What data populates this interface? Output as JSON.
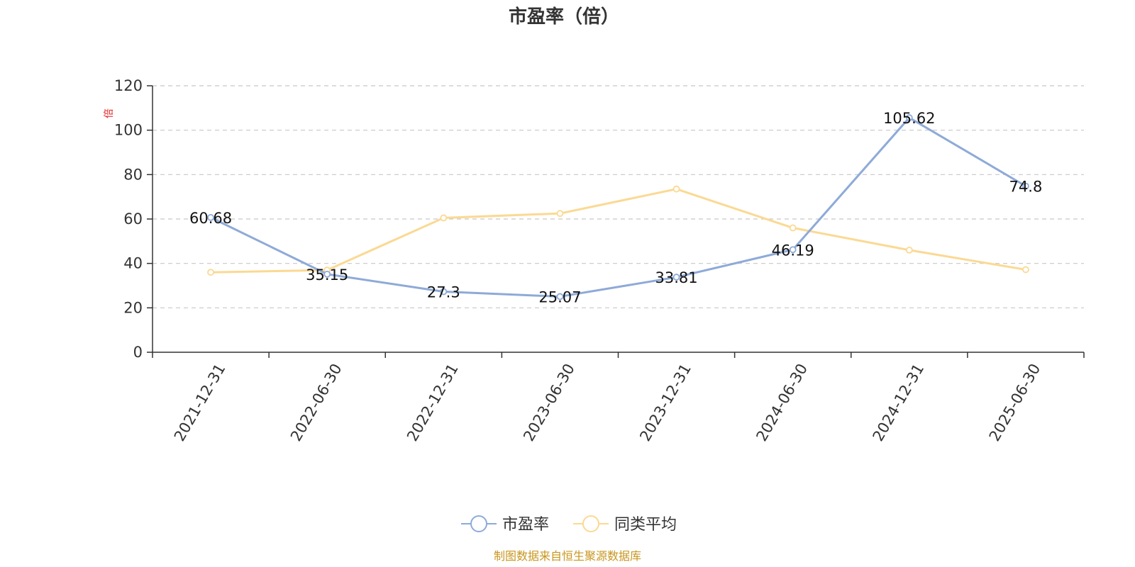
{
  "chart_data": {
    "type": "line",
    "title": "市盈率（倍）",
    "unit_label": "倍",
    "categories": [
      "2021-12-31",
      "2022-06-30",
      "2022-12-31",
      "2023-06-30",
      "2023-12-31",
      "2024-06-30",
      "2024-12-31",
      "2025-06-30"
    ],
    "series": [
      {
        "name": "市盈率",
        "color": "#8eaad8",
        "values": [
          60.68,
          35.15,
          27.3,
          25.07,
          33.81,
          46.19,
          105.62,
          74.8
        ],
        "labels": [
          "60.68",
          "35.15",
          "27.3",
          "25.07",
          "33.81",
          "46.19",
          "105.62",
          "74.8"
        ],
        "show_labels": true
      },
      {
        "name": "同类平均",
        "color": "#fbd993",
        "values": [
          36,
          37,
          60.5,
          62.5,
          73.5,
          56,
          46,
          37.2
        ],
        "show_labels": false
      }
    ],
    "yticks": [
      0,
      20,
      40,
      60,
      80,
      100,
      120
    ],
    "ylim": [
      0,
      120
    ],
    "grid": true,
    "legend_position": "bottom-center"
  },
  "source": "制图数据来自恒生聚源数据库"
}
